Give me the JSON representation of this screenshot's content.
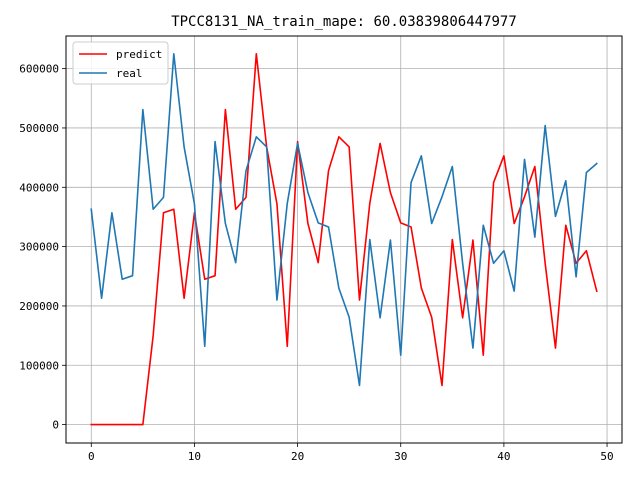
{
  "chart_data": {
    "type": "line",
    "title": "TPCC8131_NA_train_mape: 60.03839806447977",
    "xlabel": "",
    "ylabel": "",
    "xlim": [
      -2.45,
      51.45
    ],
    "ylim": [
      -31000,
      655000
    ],
    "x_ticks": [
      0,
      10,
      20,
      30,
      40,
      50
    ],
    "y_ticks": [
      0,
      100000,
      200000,
      300000,
      400000,
      500000,
      600000
    ],
    "grid": true,
    "legend_position": "top-left",
    "x": [
      0,
      1,
      2,
      3,
      4,
      5,
      6,
      7,
      8,
      9,
      10,
      11,
      12,
      13,
      14,
      15,
      16,
      17,
      18,
      19,
      20,
      21,
      22,
      23,
      24,
      25,
      26,
      27,
      28,
      29,
      30,
      31,
      32,
      33,
      34,
      35,
      36,
      37,
      38,
      39,
      40,
      41,
      42,
      43,
      44,
      45,
      46,
      47,
      48,
      49
    ],
    "series": [
      {
        "name": "predict",
        "color": "#ff0000",
        "values": [
          0,
          0,
          0,
          0,
          0,
          0,
          150000,
          357000,
          363000,
          213000,
          357000,
          245000,
          251000,
          531000,
          363000,
          383000,
          625000,
          468000,
          372000,
          132000,
          477000,
          339000,
          273000,
          428000,
          485000,
          468000,
          210000,
          373000,
          474000,
          391000,
          340000,
          333000,
          230000,
          181000,
          66000,
          312000,
          180000,
          311000,
          117000,
          408000,
          453000,
          339000,
          384000,
          435000,
          272000,
          129000,
          336000,
          272000,
          293000,
          225000
        ]
      },
      {
        "name": "real",
        "color": "#1f77b4",
        "values": [
          363000,
          213000,
          357000,
          245000,
          251000,
          531000,
          363000,
          383000,
          625000,
          468000,
          372000,
          132000,
          477000,
          339000,
          273000,
          428000,
          485000,
          468000,
          210000,
          373000,
          474000,
          391000,
          340000,
          333000,
          230000,
          181000,
          66000,
          312000,
          180000,
          311000,
          117000,
          408000,
          453000,
          339000,
          384000,
          435000,
          272000,
          129000,
          336000,
          272000,
          293000,
          225000,
          447000,
          316000,
          504000,
          351000,
          411000,
          249000,
          425000,
          440000
        ]
      }
    ]
  }
}
